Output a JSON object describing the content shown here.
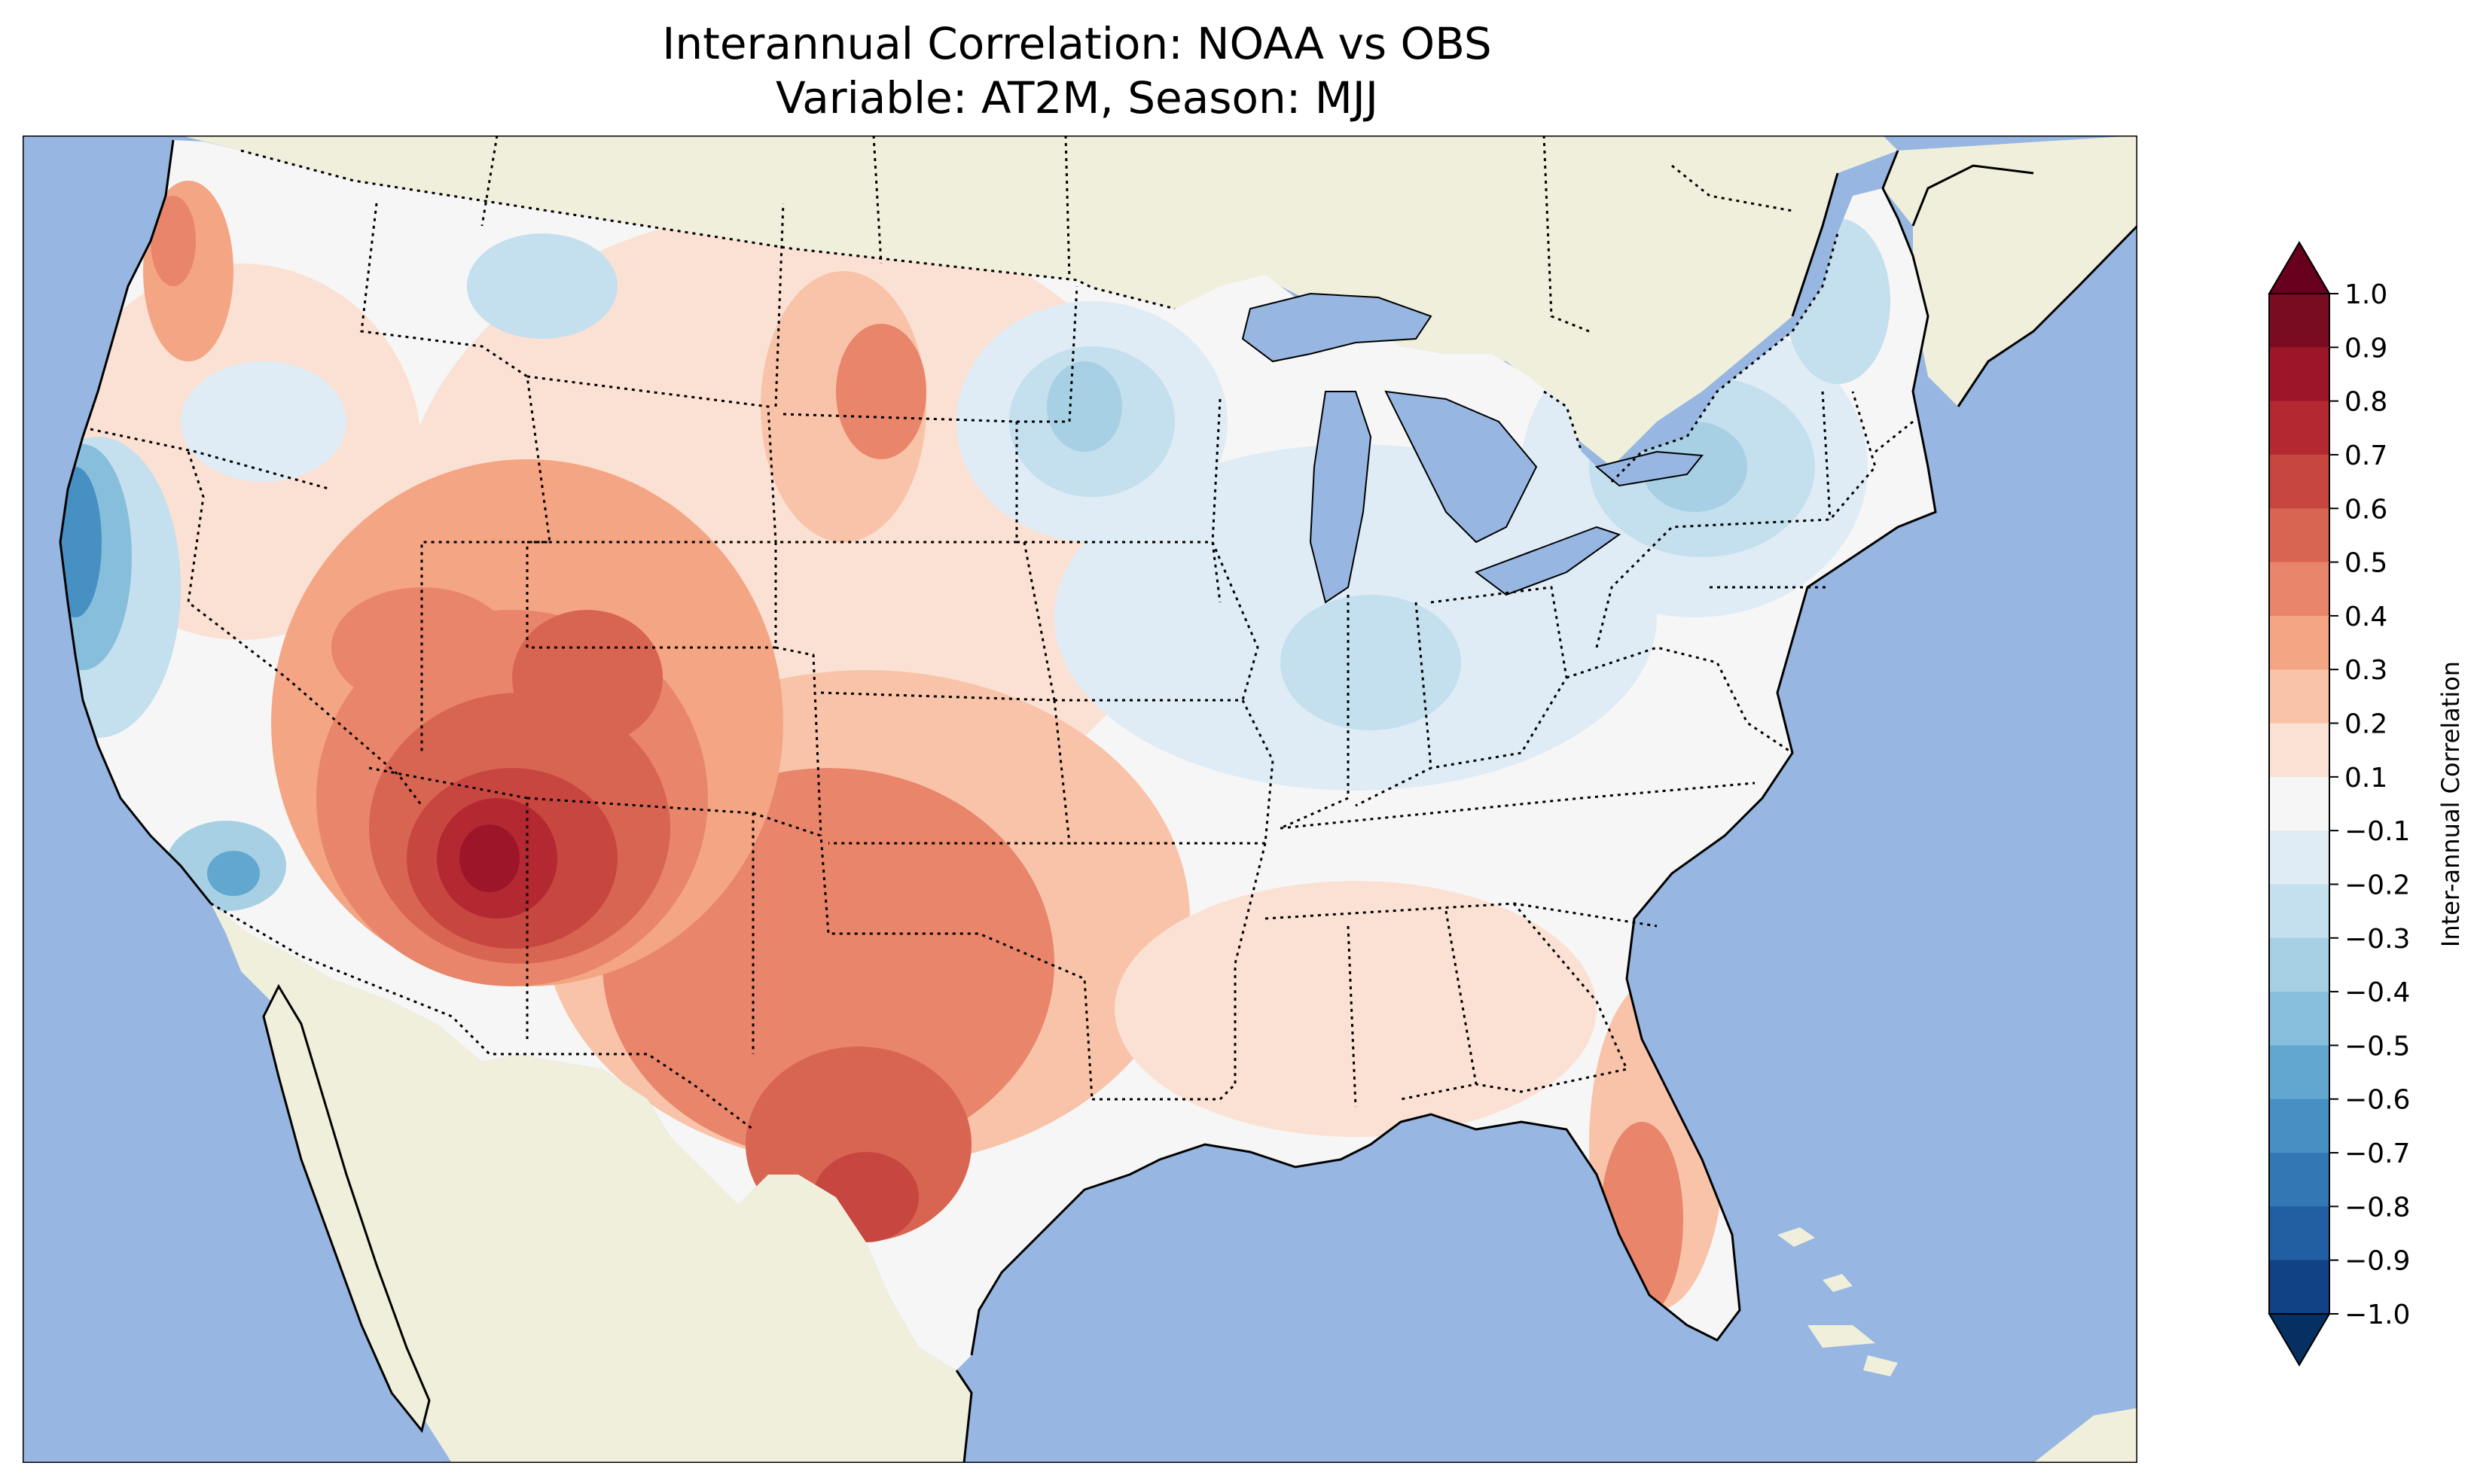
{
  "figure": {
    "title_line1": "Interannual Correlation: NOAA vs OBS",
    "title_line2": "Variable: AT2M, Season: MJJ"
  },
  "map": {
    "ocean_color": "#97b6e1",
    "land_color": "#efefdb",
    "lake_color": "#97b6e1",
    "coastline_color": "#000000",
    "state_border_style": "dotted",
    "region": "Contiguous United States"
  },
  "colorbar": {
    "label": "Inter-annual Correlation",
    "orientation": "vertical",
    "extend": "both",
    "ticks": [
      "1.0",
      "0.9",
      "0.8",
      "0.7",
      "0.6",
      "0.5",
      "0.4",
      "0.3",
      "0.2",
      "0.1",
      "−0.1",
      "−0.2",
      "−0.3",
      "−0.4",
      "−0.5",
      "−0.6",
      "−0.7",
      "−0.8",
      "−0.9",
      "−1.0"
    ],
    "levels": [
      {
        "range": [
          0.9,
          1.0
        ],
        "color": "#7a0c22"
      },
      {
        "range": [
          0.8,
          0.9
        ],
        "color": "#9d1529"
      },
      {
        "range": [
          0.7,
          0.8
        ],
        "color": "#b42832"
      },
      {
        "range": [
          0.6,
          0.7
        ],
        "color": "#c7463f"
      },
      {
        "range": [
          0.5,
          0.6
        ],
        "color": "#d86552"
      },
      {
        "range": [
          0.4,
          0.5
        ],
        "color": "#e8856a"
      },
      {
        "range": [
          0.3,
          0.4
        ],
        "color": "#f3a584"
      },
      {
        "range": [
          0.2,
          0.3
        ],
        "color": "#f8c3a8"
      },
      {
        "range": [
          0.1,
          0.2
        ],
        "color": "#fbe1d3"
      },
      {
        "range": [
          -0.1,
          0.1
        ],
        "color": "#f6f6f6"
      },
      {
        "range": [
          -0.2,
          -0.1
        ],
        "color": "#dfecf5"
      },
      {
        "range": [
          -0.3,
          -0.2
        ],
        "color": "#c4dfed"
      },
      {
        "range": [
          -0.4,
          -0.3
        ],
        "color": "#a7d0e4"
      },
      {
        "range": [
          -0.5,
          -0.4
        ],
        "color": "#87bedc"
      },
      {
        "range": [
          -0.6,
          -0.5
        ],
        "color": "#62a7d0"
      },
      {
        "range": [
          -0.7,
          -0.6
        ],
        "color": "#4690c3"
      },
      {
        "range": [
          -0.8,
          -0.7
        ],
        "color": "#3378b5"
      },
      {
        "range": [
          -0.9,
          -0.8
        ],
        "color": "#225ea2"
      },
      {
        "range": [
          -1.0,
          -0.9
        ],
        "color": "#114286"
      }
    ],
    "over_color": "#67001f",
    "under_color": "#053061"
  }
}
